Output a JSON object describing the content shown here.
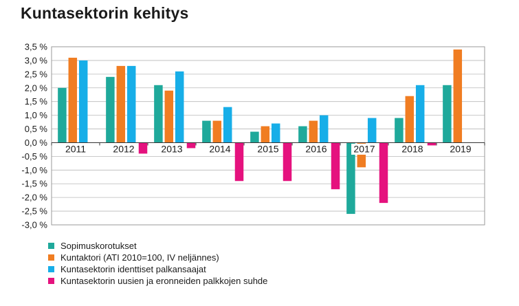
{
  "chart_data": {
    "type": "bar",
    "title": "Kuntasektorin kehitys",
    "categories": [
      "2011",
      "2012",
      "2013",
      "2014",
      "2015",
      "2016",
      "2017",
      "2018",
      "2019"
    ],
    "series": [
      {
        "name": "Sopimuskorotukset",
        "color": "#1fa99b",
        "values": [
          2.0,
          2.4,
          2.1,
          0.8,
          0.4,
          0.6,
          -2.6,
          0.9,
          2.1
        ]
      },
      {
        "name": "Kuntaktori (ATI 2010=100, IV neljännes)",
        "color": "#f07d22",
        "values": [
          3.1,
          2.8,
          1.9,
          0.8,
          0.6,
          0.8,
          -0.9,
          1.7,
          3.4
        ]
      },
      {
        "name": "Kuntasektorin identtiset palkansaajat",
        "color": "#17aee8",
        "values": [
          3.0,
          2.8,
          2.6,
          1.3,
          0.7,
          1.0,
          0.9,
          2.1,
          null
        ]
      },
      {
        "name": "Kuntasektorin uusien ja eronneiden palkkojen suhde",
        "color": "#e5127e",
        "values": [
          null,
          -0.4,
          -0.2,
          -1.4,
          -1.4,
          -1.7,
          -2.2,
          -0.1,
          null
        ]
      }
    ],
    "ylim": [
      -3.0,
      3.5
    ],
    "yticks": [
      "3,5 %",
      "3,0 %",
      "2,5 %",
      "2,0 %",
      "1,5 %",
      "1,0 %",
      "0,5 %",
      "0,0 %",
      "-0,5 %",
      "-1,0 %",
      "-1,5 %",
      "-2,0 %",
      "-2,5 %",
      "-3,0 %"
    ],
    "grid": true,
    "legend_position": "bottom-left"
  }
}
